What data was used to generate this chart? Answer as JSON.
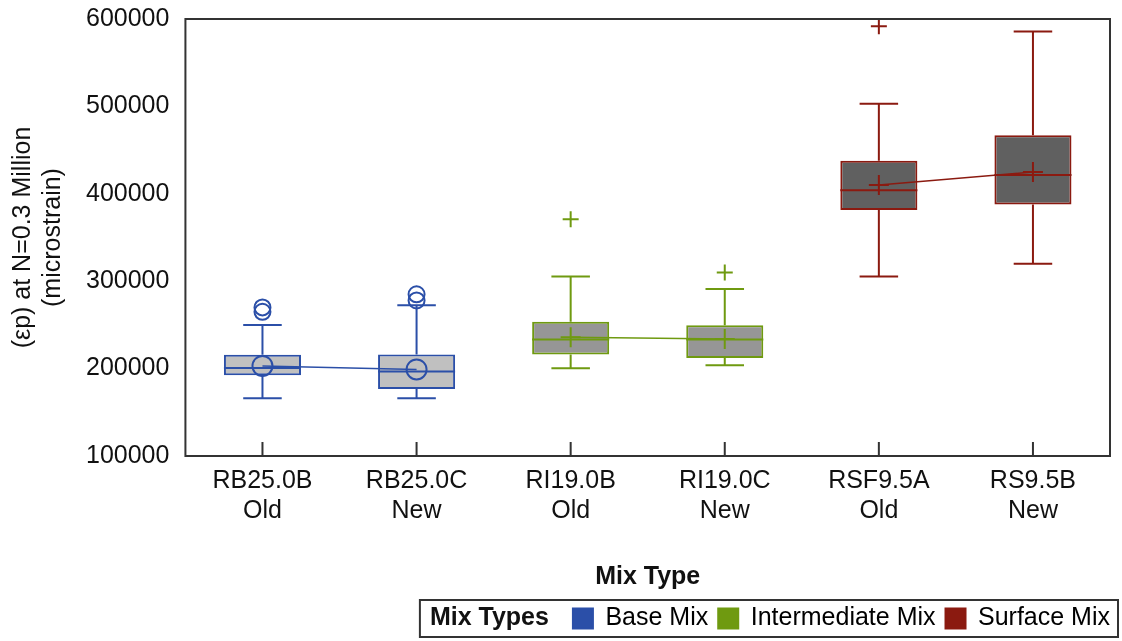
{
  "chart_data": {
    "type": "box",
    "xlabel": "Mix Type",
    "ylabel": "(εp) at N=0.3 Million\n(microstrain)",
    "legend_title": "Mix Types",
    "legend": "bottom",
    "grid": false,
    "categories": [
      "RB25.0B\nOld",
      "RB25.0C\nNew",
      "RI19.0B\nOld",
      "RI19.0C\nNew",
      "RSF9.5A\nOld",
      "RS9.5B\nNew"
    ],
    "ylim": [
      100000,
      600000
    ],
    "yticks": [
      100000,
      200000,
      300000,
      400000,
      500000,
      600000
    ],
    "series": [
      {
        "name": "Base Mix",
        "color": "#2b4fa8",
        "marker": "circle",
        "boxes": [
          {
            "low": 166000,
            "q1": 192500,
            "median": 200600,
            "q3": 215800,
            "high": 250000,
            "outliers": [
              265000,
              270000
            ]
          },
          {
            "low": 166000,
            "q1": 176600,
            "median": 196600,
            "q3": 216000,
            "high": 272400,
            "outliers": [
              278000,
              285000
            ]
          },
          null,
          null,
          null,
          null
        ]
      },
      {
        "name": "Intermediate Mix",
        "color": "#6f9a10",
        "marker": "cross",
        "boxes": [
          null,
          null,
          {
            "low": 200300,
            "q1": 216100,
            "median": 233300,
            "q3": 253700,
            "high": 305400,
            "outliers": [
              371000
            ]
          },
          {
            "low": 203900,
            "q1": 212100,
            "median": 233300,
            "q3": 249500,
            "high": 291100,
            "outliers": [
              309900
            ]
          },
          null,
          null
        ]
      },
      {
        "name": "Surface Mix",
        "color": "#8b1a10",
        "marker": "cross",
        "boxes": [
          null,
          null,
          null,
          null,
          {
            "low": 305400,
            "q1": 381500,
            "median": 404000,
            "q3": 437800,
            "high": 503000,
            "outliers": [
              591800
            ]
          },
          {
            "low": 320000,
            "q1": 387700,
            "median": 421500,
            "q3": 467100,
            "high": 585700
          }
        ]
      },
      {
        "type": "line",
        "color": "#2b4fa8",
        "marker": "circle",
        "values": [
          203000,
          199000,
          null,
          null,
          null,
          null
        ]
      },
      {
        "type": "line",
        "color": "#6f9a10",
        "marker": "cross",
        "values": [
          null,
          null,
          236000,
          234000,
          null,
          null
        ]
      },
      {
        "type": "line",
        "color": "#8b1a10",
        "marker": "cross",
        "values": [
          null,
          null,
          null,
          null,
          410000,
          425000
        ]
      }
    ]
  }
}
